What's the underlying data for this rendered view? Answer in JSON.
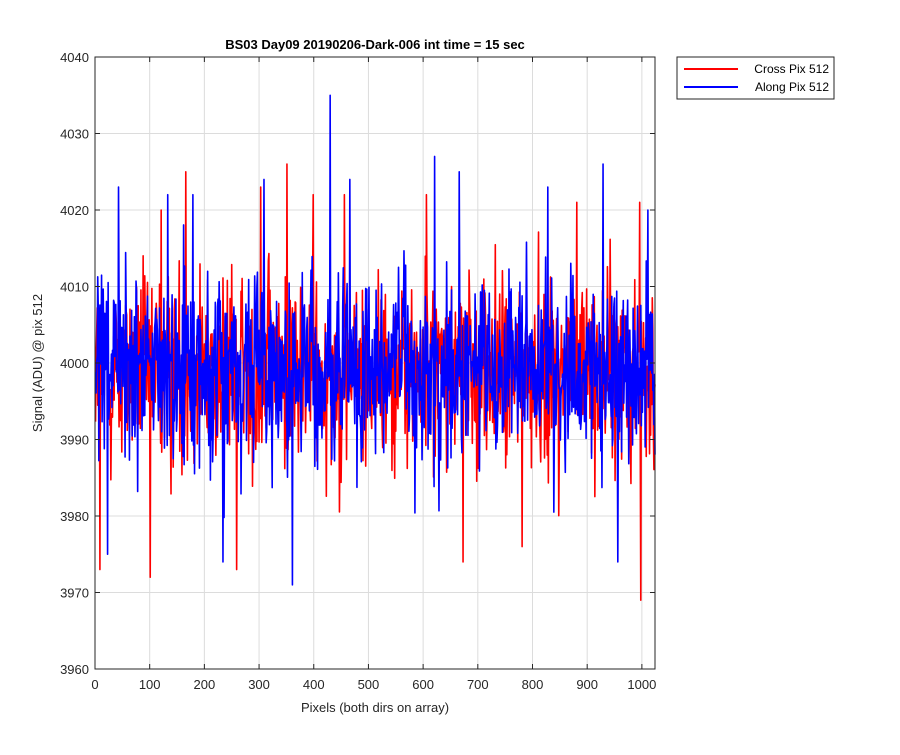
{
  "chart_data": {
    "type": "line",
    "title": "BS03 Day09 20190206-Dark-006 int time = 15 sec",
    "xlabel": "Pixels (both dirs on array)",
    "ylabel": "Signal (ADU) @ pix 512",
    "xlim": [
      0,
      1024
    ],
    "ylim": [
      3960,
      4040
    ],
    "xticks": [
      0,
      100,
      200,
      300,
      400,
      500,
      600,
      700,
      800,
      900,
      1000
    ],
    "yticks": [
      3960,
      3970,
      3980,
      3990,
      4000,
      4010,
      4020,
      4030,
      4040
    ],
    "grid": true,
    "legend_position": "outside top-right",
    "series": [
      {
        "name": "Cross Pix 512",
        "color": "#ff0000",
        "approximate_mean": 3999,
        "notable_points": [
          {
            "x": 8,
            "y": 3973
          },
          {
            "x": 100,
            "y": 3972
          },
          {
            "x": 120,
            "y": 4020
          },
          {
            "x": 165,
            "y": 4025
          },
          {
            "x": 258,
            "y": 3973
          },
          {
            "x": 302,
            "y": 4023
          },
          {
            "x": 350,
            "y": 4026
          },
          {
            "x": 398,
            "y": 4022
          },
          {
            "x": 455,
            "y": 4022
          },
          {
            "x": 605,
            "y": 4022
          },
          {
            "x": 672,
            "y": 3974
          },
          {
            "x": 780,
            "y": 3976
          },
          {
            "x": 880,
            "y": 4021
          },
          {
            "x": 997,
            "y": 3969
          },
          {
            "x": 995,
            "y": 4021
          }
        ]
      },
      {
        "name": "Along Pix 512",
        "color": "#0000ff",
        "approximate_mean": 3999,
        "notable_points": [
          {
            "x": 22,
            "y": 3975
          },
          {
            "x": 42,
            "y": 4023
          },
          {
            "x": 132,
            "y": 4022
          },
          {
            "x": 178,
            "y": 4022
          },
          {
            "x": 233,
            "y": 3974
          },
          {
            "x": 308,
            "y": 4024
          },
          {
            "x": 360,
            "y": 3971
          },
          {
            "x": 429,
            "y": 4035
          },
          {
            "x": 465,
            "y": 4024
          },
          {
            "x": 620,
            "y": 4027
          },
          {
            "x": 665,
            "y": 4025
          },
          {
            "x": 827,
            "y": 4023
          },
          {
            "x": 928,
            "y": 4026
          },
          {
            "x": 955,
            "y": 3974
          },
          {
            "x": 1010,
            "y": 4020
          }
        ]
      }
    ]
  }
}
